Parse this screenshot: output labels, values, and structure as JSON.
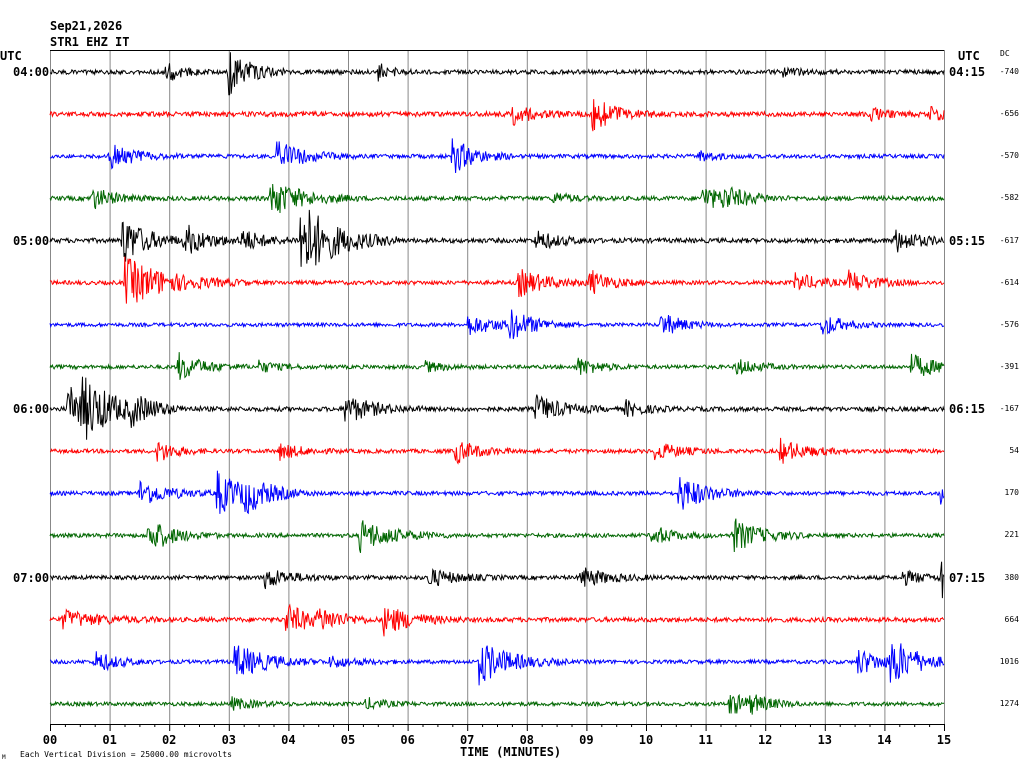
{
  "header": {
    "date": "Sep21,2026",
    "station": "STR1 EHZ IT",
    "utc_left": "UTC",
    "utc_right": "UTC",
    "dc_label": "DC"
  },
  "footer": {
    "xlabel": "TIME (MINUTES)",
    "note": "Each Vertical Division = 25000.00 microvolts",
    "corner_mark": "M"
  },
  "chart_data": {
    "type": "line",
    "title": "",
    "xlabel": "TIME (MINUTES)",
    "ylabel": "",
    "xlim": [
      0,
      15
    ],
    "x_tick_labels": [
      "00",
      "01",
      "02",
      "03",
      "04",
      "05",
      "06",
      "07",
      "08",
      "09",
      "10",
      "11",
      "12",
      "13",
      "14",
      "15"
    ],
    "grid": "vertical lines every minute",
    "trace_colors": [
      "#000000",
      "#ff0000",
      "#0000ff",
      "#006600"
    ],
    "left_time_labels": [
      {
        "row": 0,
        "label": "04:00"
      },
      {
        "row": 4,
        "label": "05:00"
      },
      {
        "row": 8,
        "label": "06:00"
      },
      {
        "row": 12,
        "label": "07:00"
      }
    ],
    "right_time_labels": [
      {
        "row": 0,
        "label": "04:15"
      },
      {
        "row": 4,
        "label": "05:15"
      },
      {
        "row": 8,
        "label": "06:15"
      },
      {
        "row": 12,
        "label": "07:15"
      }
    ],
    "dc_offsets": [
      "-740",
      "-656",
      "-570",
      "-582",
      "-617",
      "-614",
      "-576",
      "-391",
      "-167",
      "54",
      "170",
      "221",
      "380",
      "664",
      "1016",
      "1274"
    ],
    "series": [
      {
        "values_noise": 2.2,
        "events": [
          [
            1.95,
            10,
            0.25
          ],
          [
            3.0,
            22,
            0.35
          ],
          [
            5.5,
            9,
            0.2
          ],
          [
            12.3,
            4,
            0.3
          ]
        ]
      },
      {
        "values_noise": 2.4,
        "events": [
          [
            7.75,
            10,
            0.35
          ],
          [
            9.1,
            16,
            0.4
          ],
          [
            13.75,
            6,
            0.3
          ],
          [
            14.75,
            8,
            0.3
          ]
        ]
      },
      {
        "values_noise": 2.0,
        "events": [
          [
            1.0,
            13,
            0.4
          ],
          [
            3.8,
            15,
            0.45
          ],
          [
            6.75,
            18,
            0.35
          ],
          [
            10.9,
            5,
            0.3
          ]
        ]
      },
      {
        "values_noise": 2.2,
        "events": [
          [
            0.7,
            11,
            0.35
          ],
          [
            3.7,
            19,
            0.5
          ],
          [
            8.45,
            6,
            0.25
          ],
          [
            10.95,
            12,
            0.4
          ],
          [
            11.3,
            8,
            0.4
          ]
        ]
      },
      {
        "values_noise": 2.3,
        "events": [
          [
            1.2,
            25,
            0.4
          ],
          [
            2.25,
            15,
            0.4
          ],
          [
            3.2,
            10,
            0.4
          ],
          [
            4.2,
            40,
            0.55
          ],
          [
            8.15,
            10,
            0.35
          ],
          [
            14.15,
            12,
            0.4
          ]
        ]
      },
      {
        "values_noise": 2.0,
        "events": [
          [
            1.25,
            25,
            0.7
          ],
          [
            7.85,
            14,
            0.45
          ],
          [
            9.05,
            12,
            0.35
          ],
          [
            12.5,
            9,
            0.4
          ],
          [
            13.4,
            11,
            0.4
          ]
        ]
      },
      {
        "values_noise": 1.8,
        "events": [
          [
            7.0,
            10,
            0.5
          ],
          [
            7.7,
            14,
            0.4
          ],
          [
            10.25,
            12,
            0.35
          ],
          [
            12.95,
            11,
            0.35
          ]
        ]
      },
      {
        "values_noise": 1.9,
        "events": [
          [
            2.15,
            14,
            0.4
          ],
          [
            3.5,
            6,
            0.3
          ],
          [
            6.3,
            5,
            0.3
          ],
          [
            8.85,
            9,
            0.35
          ],
          [
            11.5,
            8,
            0.35
          ],
          [
            14.45,
            12,
            0.45
          ]
        ]
      },
      {
        "values_noise": 2.3,
        "events": [
          [
            0.3,
            22,
            0.6
          ],
          [
            0.55,
            20,
            0.45
          ],
          [
            1.35,
            10,
            0.4
          ],
          [
            4.95,
            14,
            0.45
          ],
          [
            8.15,
            14,
            0.4
          ],
          [
            9.65,
            8,
            0.3
          ]
        ]
      },
      {
        "values_noise": 2.0,
        "events": [
          [
            1.8,
            11,
            0.3
          ],
          [
            3.85,
            8,
            0.35
          ],
          [
            6.8,
            12,
            0.35
          ],
          [
            10.15,
            9,
            0.4
          ],
          [
            12.25,
            12,
            0.4
          ]
        ]
      },
      {
        "values_noise": 2.0,
        "events": [
          [
            1.5,
            13,
            0.45
          ],
          [
            2.8,
            22,
            0.45
          ],
          [
            3.25,
            14,
            0.4
          ],
          [
            10.55,
            18,
            0.45
          ],
          [
            14.95,
            13,
            0.3
          ]
        ]
      },
      {
        "values_noise": 2.0,
        "events": [
          [
            1.65,
            17,
            0.4
          ],
          [
            5.2,
            16,
            0.5
          ],
          [
            10.1,
            10,
            0.35
          ],
          [
            11.45,
            17,
            0.45
          ]
        ]
      },
      {
        "values_noise": 2.0,
        "events": [
          [
            3.6,
            10,
            0.45
          ],
          [
            6.35,
            9,
            0.45
          ],
          [
            8.9,
            10,
            0.45
          ],
          [
            14.3,
            7,
            0.35
          ],
          [
            14.95,
            24,
            0.3
          ]
        ]
      },
      {
        "values_noise": 2.3,
        "events": [
          [
            0.2,
            9,
            0.6
          ],
          [
            3.95,
            15,
            0.45
          ],
          [
            4.5,
            9,
            0.35
          ],
          [
            5.6,
            15,
            0.45
          ]
        ]
      },
      {
        "values_noise": 1.9,
        "events": [
          [
            0.75,
            11,
            0.35
          ],
          [
            3.1,
            18,
            0.5
          ],
          [
            4.7,
            6,
            0.4
          ],
          [
            7.2,
            22,
            0.5
          ],
          [
            13.55,
            13,
            0.4
          ],
          [
            14.1,
            22,
            0.45
          ]
        ]
      },
      {
        "values_noise": 1.9,
        "events": [
          [
            3.05,
            6,
            0.35
          ],
          [
            5.3,
            6,
            0.3
          ],
          [
            11.4,
            11,
            0.4
          ],
          [
            11.75,
            6,
            0.3
          ]
        ]
      }
    ]
  }
}
